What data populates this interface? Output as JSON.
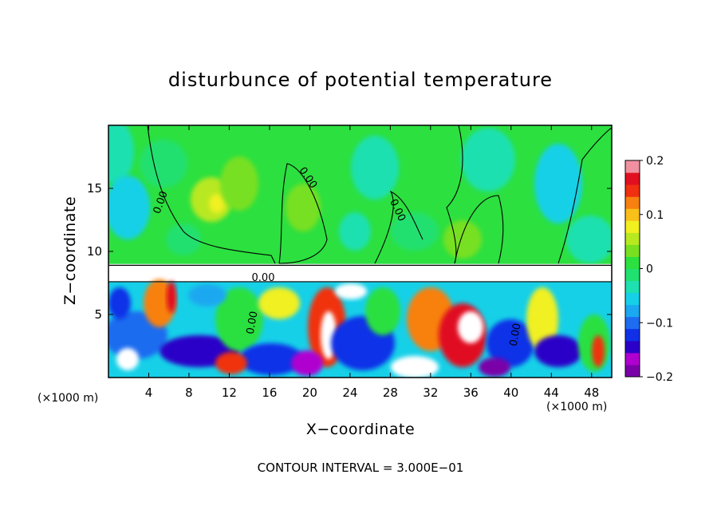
{
  "chart_data": {
    "type": "heatmap",
    "title": "disturbunce of potential temperature",
    "xlabel": "X−coordinate",
    "ylabel": "Z−coordinate",
    "x_unit": "(×1000 m)",
    "y_unit": "(×1000 m)",
    "xlim": [
      0,
      50
    ],
    "ylim": [
      0,
      20
    ],
    "x_ticks": [
      "4",
      "8",
      "12",
      "16",
      "20",
      "24",
      "28",
      "32",
      "36",
      "40",
      "44",
      "48"
    ],
    "y_ticks": [
      "5",
      "10",
      "15"
    ],
    "x_tick_values": [
      4,
      8,
      12,
      16,
      20,
      24,
      28,
      32,
      36,
      40,
      44,
      48
    ],
    "y_tick_values": [
      5,
      10,
      15
    ],
    "colorbar": {
      "min": -0.2,
      "max": 0.2,
      "tick_labels": [
        "0.2",
        "0.1",
        "0",
        "−0.1",
        "−0.2"
      ],
      "tick_values": [
        0.2,
        0.1,
        0,
        -0.1,
        -0.2
      ],
      "colors": [
        "#7a00a8",
        "#b000d0",
        "#2b00c8",
        "#1030e8",
        "#1e6cf0",
        "#1aa8f0",
        "#16d0e8",
        "#1ee0b0",
        "#20e070",
        "#2ce040",
        "#78e020",
        "#b8e820",
        "#f0f020",
        "#f8c018",
        "#f88010",
        "#f03010",
        "#e01020",
        "#f090a0"
      ]
    },
    "contour_labels": [
      "0.00",
      "0.00",
      "0.00",
      "0.00",
      "0.00",
      "0.00"
    ],
    "contour_interval_text": "CONTOUR INTERVAL = 3.000E−01",
    "grid": false
  }
}
